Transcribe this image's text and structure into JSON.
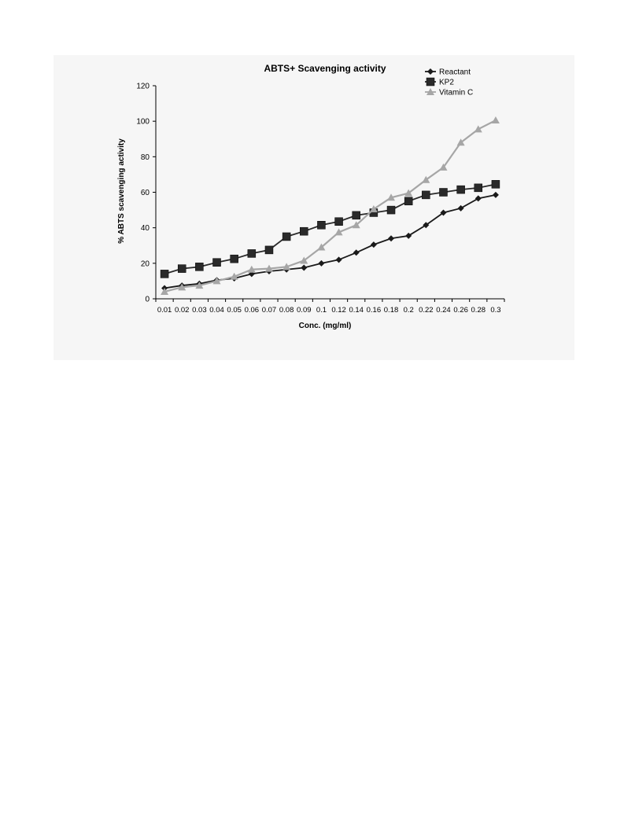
{
  "chart_data": {
    "type": "line",
    "title": "ABTS+ Scavenging activity",
    "xlabel": "Conc. (mg/ml)",
    "ylabel": "% ABTS scavenging activity",
    "ylim": [
      0,
      120
    ],
    "yticks": [
      0,
      20,
      40,
      60,
      80,
      100,
      120
    ],
    "grid": false,
    "legend_position": "top-right",
    "categories": [
      "0.01",
      "0.02",
      "0.03",
      "0.04",
      "0.05",
      "0.06",
      "0.07",
      "0.08",
      "0.09",
      "0.1",
      "0.12",
      "0.14",
      "0.16",
      "0.18",
      "0.2",
      "0.22",
      "0.24",
      "0.26",
      "0.28",
      "0.3"
    ],
    "series": [
      {
        "name": "Reactant",
        "marker": "diamond",
        "color": "#1a1a1a",
        "values": [
          6,
          7.5,
          8.5,
          10.5,
          11.5,
          14,
          15.5,
          16.5,
          17.5,
          20,
          22,
          26,
          30.5,
          34,
          35.5,
          41.5,
          48.5,
          51,
          56.5,
          58.5
        ]
      },
      {
        "name": "KP2",
        "marker": "square",
        "color": "#2a2a2a",
        "values": [
          14,
          17,
          18,
          20.5,
          22.5,
          25.5,
          27.5,
          35,
          38,
          41.5,
          43.5,
          47,
          48.5,
          50,
          55,
          58.5,
          60,
          61.5,
          62.5,
          64.5
        ]
      },
      {
        "name": "Vitamin C",
        "marker": "triangle",
        "color": "#a6a6a6",
        "values": [
          4,
          6.5,
          7.5,
          10,
          12.5,
          16.5,
          17,
          18,
          21.5,
          29,
          37.5,
          41.5,
          50.5,
          57,
          59.5,
          67,
          74,
          88,
          95.5,
          100.5
        ]
      }
    ]
  }
}
